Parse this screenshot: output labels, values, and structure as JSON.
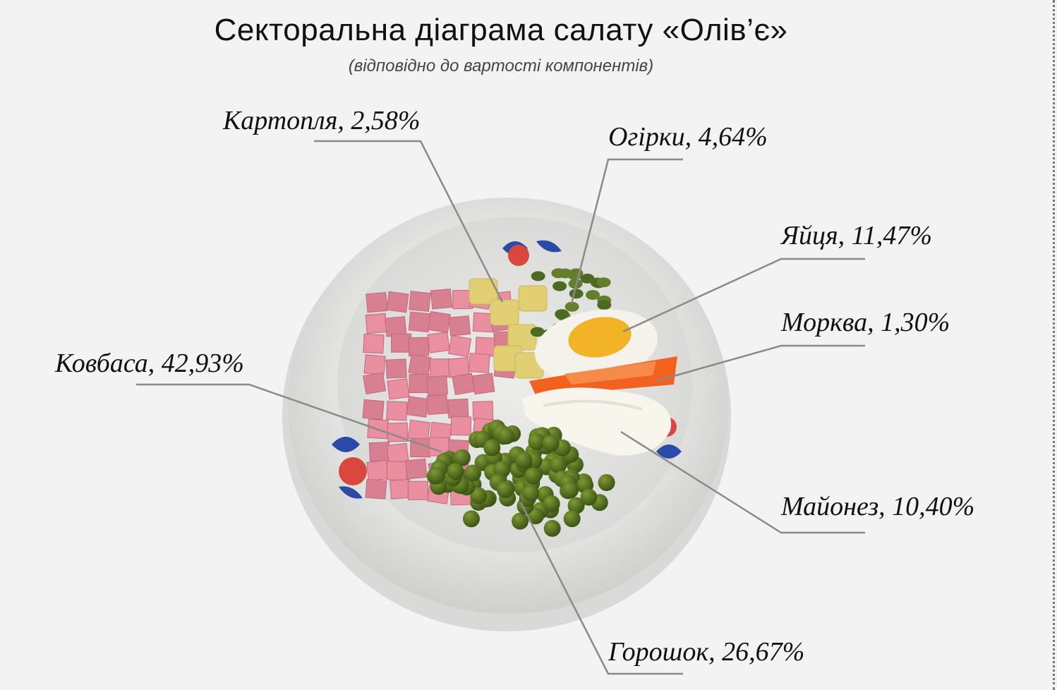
{
  "chart_data": {
    "type": "pie",
    "title": "Секторальна діаграма салату «Олів’є»",
    "subtitle": "(відповідно до вартості компонентів)",
    "slices": [
      {
        "name": "Ковбаса",
        "value": 42.93,
        "text": "Ковбаса, 42,93%"
      },
      {
        "name": "Горошок",
        "value": 26.67,
        "text": "Горошок, 26,67%"
      },
      {
        "name": "Майонез",
        "value": 10.4,
        "text": "Майонез, 10,40%"
      },
      {
        "name": "Морква",
        "value": 1.3,
        "text": "Морква, 1,30%"
      },
      {
        "name": "Яйця",
        "value": 11.47,
        "text": "Яйця, 11,47%"
      },
      {
        "name": "Огірки",
        "value": 4.64,
        "text": "Огірки, 4,64%"
      },
      {
        "name": "Картопля",
        "value": 2.58,
        "text": "Картопля, 2,58%"
      }
    ],
    "colors": {
      "Ковбаса": "#e98fa0",
      "Горошок": "#4a6a1c",
      "Майонез": "#f7f5ec",
      "Морква": "#f2621e",
      "Яйця": "#f2b326",
      "Огірки": "#4d6a22",
      "Картопля": "#e2cf74"
    },
    "legend": "leader-line labels around the plate"
  }
}
